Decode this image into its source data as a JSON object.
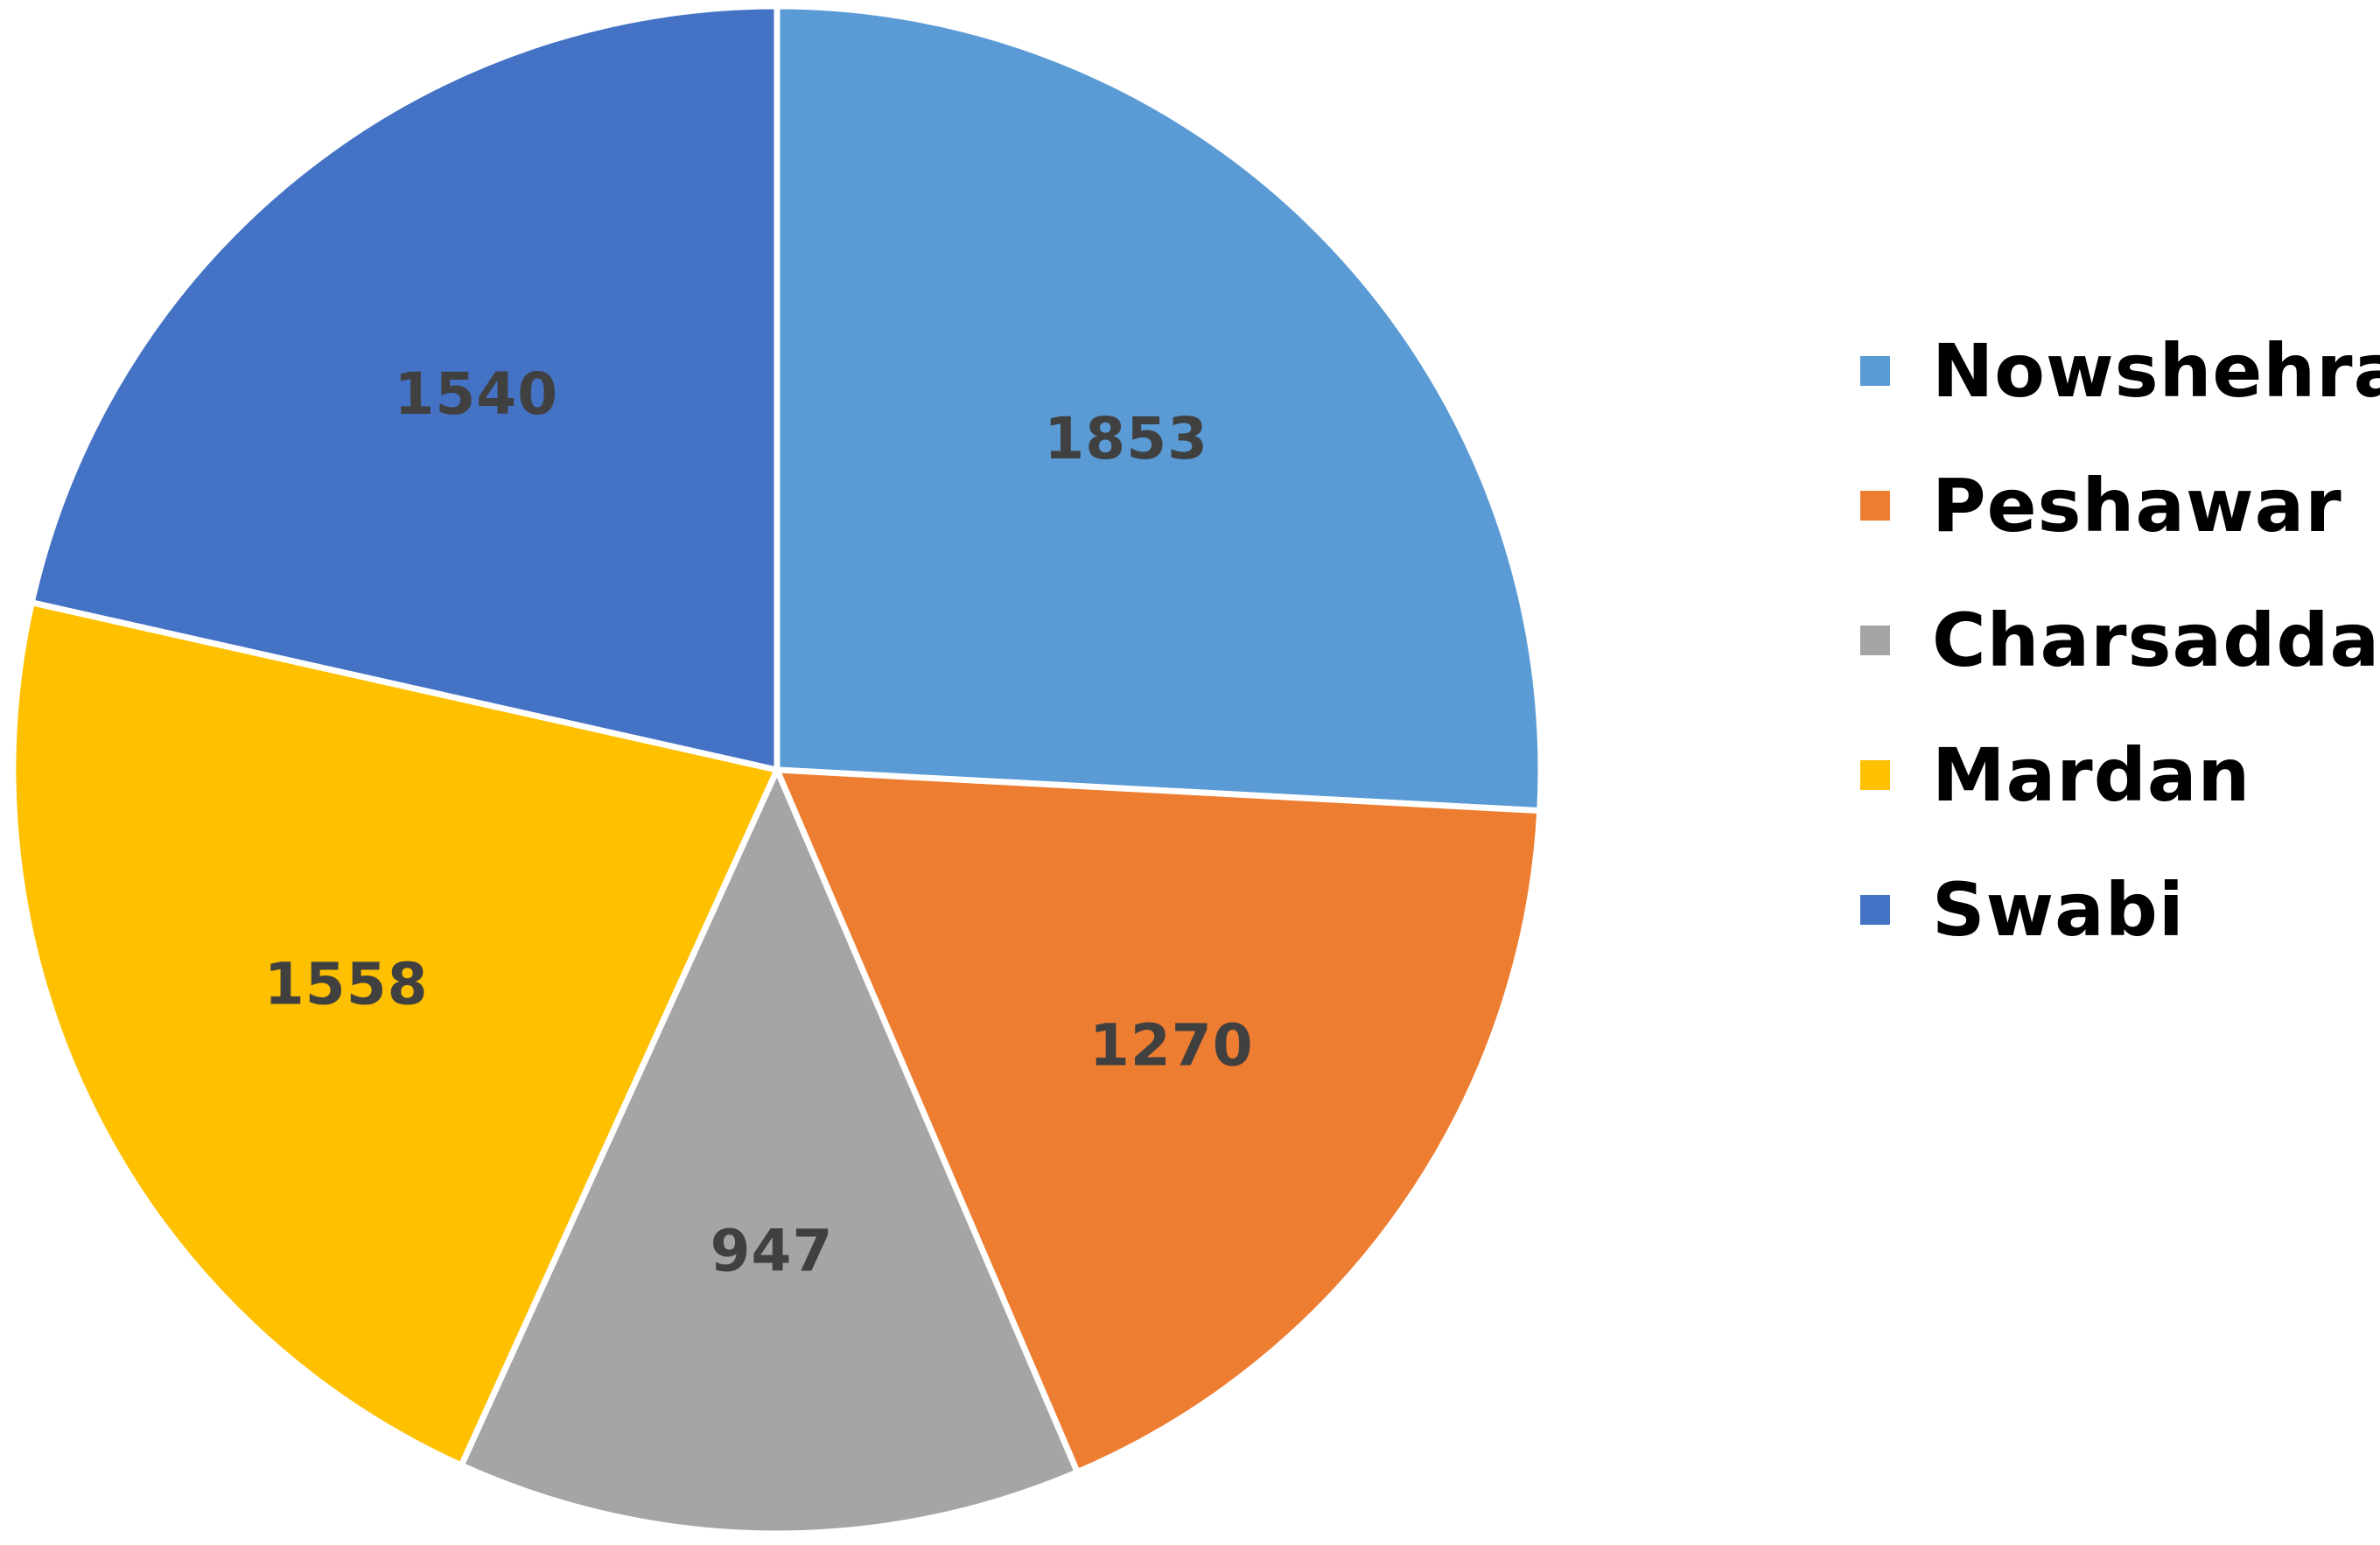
{
  "chart_data": {
    "type": "pie",
    "title": "",
    "start_angle": "12 o'clock, clockwise",
    "legend_position": "right",
    "label_color": "#404040",
    "slice_border_color": "#ffffff",
    "categories": [
      "Nowshehra",
      "Peshawar",
      "Charsadda",
      "Mardan",
      "Swabi"
    ],
    "values": [
      1853,
      1270,
      947,
      1558,
      1540
    ],
    "colors": [
      "#5B9BD5",
      "#ED7D31",
      "#A5A5A5",
      "#FFC000",
      "#4472C4"
    ]
  }
}
